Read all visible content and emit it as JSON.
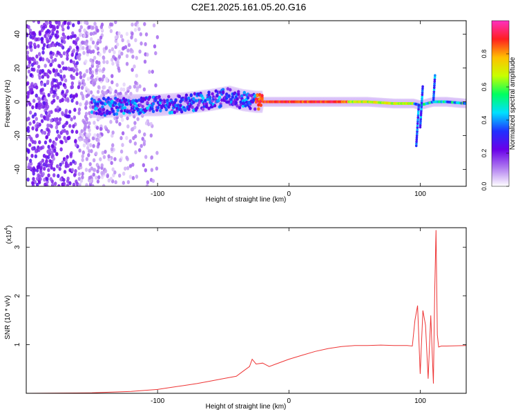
{
  "title": "C2E1.2025.161.05.20.G16",
  "chart_data": [
    {
      "type": "heatmap",
      "title": "C2E1.2025.161.05.20.G16",
      "xlabel": "Height of straight line (km)",
      "ylabel": "Frequency (Hz)",
      "xlim": [
        -200,
        135
      ],
      "ylim": [
        -50,
        48
      ],
      "x_ticks": [
        -100,
        0,
        100
      ],
      "x_tick_labels": [
        "-100",
        "0",
        "100"
      ],
      "y_ticks": [
        -40,
        -20,
        0,
        20,
        40
      ],
      "y_tick_labels": [
        "-40",
        "-20",
        "0",
        "20",
        "40"
      ],
      "colorbar": {
        "label": "Normalized spectral amplitude",
        "range": [
          0,
          1
        ],
        "ticks": [
          0,
          0.2,
          0.4,
          0.6,
          0.8
        ],
        "tick_labels": [
          "0.0",
          "0.2",
          "0.4",
          "0.6",
          "0.8"
        ],
        "colors": [
          "#ffffff",
          "#b07cf0",
          "#6a00e8",
          "#2030ff",
          "#00e0ff",
          "#00ff60",
          "#c8ff00",
          "#ffc000",
          "#ff2020",
          "#ff30c0"
        ]
      },
      "ridge": {
        "x": [
          -140,
          -120,
          -100,
          -80,
          -60,
          -45,
          -35,
          -25,
          -15,
          0,
          20,
          40,
          60,
          80,
          95,
          100,
          105,
          110,
          120,
          135
        ],
        "y": [
          -3,
          -2,
          -2,
          -1,
          1,
          3,
          1,
          0,
          0,
          0,
          0,
          0,
          0,
          -1,
          -1,
          -2,
          -1,
          0,
          0,
          -1
        ]
      },
      "grid": false
    },
    {
      "type": "line",
      "xlabel": "Height of straight line (km)",
      "ylabel": "SNR (10 * v/v)",
      "y_multiplier_label": "(x10",
      "y_multiplier_exp": "4",
      "xlim": [
        -200,
        135
      ],
      "ylim": [
        0,
        3.4
      ],
      "x_ticks": [
        -100,
        0,
        100
      ],
      "x_tick_labels": [
        "-100",
        "0",
        "100"
      ],
      "y_ticks": [
        1,
        2,
        3
      ],
      "y_tick_labels": [
        "1",
        "2",
        "3"
      ],
      "series": [
        {
          "color": "#ee3333",
          "x": [
            -200,
            -150,
            -120,
            -100,
            -90,
            -80,
            -70,
            -60,
            -50,
            -40,
            -35,
            -30,
            -28,
            -25,
            -20,
            -15,
            -10,
            0,
            10,
            20,
            30,
            40,
            50,
            60,
            70,
            80,
            90,
            94,
            96,
            98,
            100,
            102,
            104,
            106,
            108,
            110,
            111,
            112,
            113,
            114,
            116,
            120,
            135
          ],
          "values": [
            0.0,
            0.01,
            0.04,
            0.08,
            0.12,
            0.16,
            0.2,
            0.25,
            0.3,
            0.35,
            0.45,
            0.55,
            0.7,
            0.6,
            0.62,
            0.55,
            0.6,
            0.7,
            0.78,
            0.86,
            0.92,
            0.96,
            0.98,
            0.98,
            0.99,
            0.98,
            0.98,
            0.97,
            1.5,
            1.8,
            0.4,
            1.7,
            1.4,
            0.3,
            1.6,
            0.2,
            2.1,
            3.35,
            1.2,
            0.95,
            0.97,
            0.97,
            0.98
          ]
        }
      ],
      "grid": false
    }
  ]
}
